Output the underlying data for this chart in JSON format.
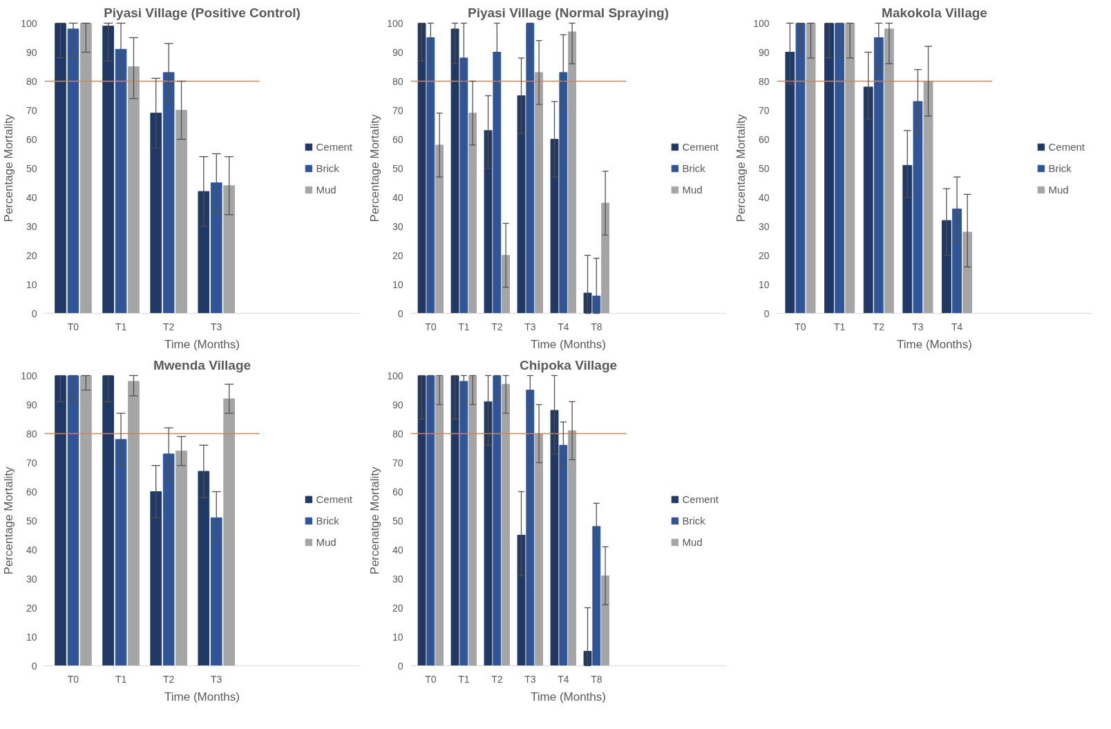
{
  "chart_data": [
    {
      "type": "bar",
      "title": "Piyasi Village (Positive Control)",
      "xlabel": "Time (Months)",
      "ylabel": "Percentage Mortality",
      "categories": [
        "T0",
        "T1",
        "T2",
        "T3"
      ],
      "ylim": [
        0,
        100
      ],
      "yticks": [
        0,
        10,
        20,
        30,
        40,
        50,
        60,
        70,
        80,
        90,
        100
      ],
      "legend": "right",
      "grid": false,
      "ref_lines": [
        {
          "axis": "y",
          "value": 80,
          "color": "#ed7d31"
        }
      ],
      "series": [
        {
          "name": "Cement",
          "color": "#203864",
          "values": [
            100,
            99,
            69,
            42
          ],
          "errors": [
            [
              88,
              100
            ],
            [
              87,
              100
            ],
            [
              57,
              81
            ],
            [
              30,
              54
            ]
          ]
        },
        {
          "name": "Brick",
          "color": "#2f5597",
          "values": [
            98,
            91,
            83,
            45
          ],
          "errors": [
            [
              88,
              100
            ],
            [
              81,
              100
            ],
            [
              73,
              93
            ],
            [
              35,
              55
            ]
          ]
        },
        {
          "name": "Mud",
          "color": "#a5a5a5",
          "values": [
            100,
            85,
            70,
            44
          ],
          "errors": [
            [
              90,
              100
            ],
            [
              74,
              95
            ],
            [
              60,
              80
            ],
            [
              34,
              54
            ]
          ]
        }
      ]
    },
    {
      "type": "bar",
      "title": "Piyasi Village (Normal Spraying)",
      "xlabel": "Time (Months)",
      "ylabel": "Percentage Mortality",
      "categories": [
        "T0",
        "T1",
        "T2",
        "T3",
        "T4",
        "T8"
      ],
      "ylim": [
        0,
        100
      ],
      "yticks": [
        0,
        10,
        20,
        30,
        40,
        50,
        60,
        70,
        80,
        90,
        100
      ],
      "legend": "right",
      "grid": false,
      "ref_lines": [
        {
          "axis": "y",
          "value": 80,
          "color": "#ed7d31"
        }
      ],
      "series": [
        {
          "name": "Cement",
          "color": "#203864",
          "values": [
            100,
            98,
            63,
            75,
            60,
            7
          ],
          "errors": [
            [
              87,
              100
            ],
            [
              86,
              100
            ],
            [
              50,
              75
            ],
            [
              62,
              88
            ],
            [
              47,
              73
            ],
            [
              0,
              20
            ]
          ]
        },
        {
          "name": "Brick",
          "color": "#2f5597",
          "values": [
            95,
            88,
            90,
            100,
            83,
            6
          ],
          "errors": [
            [
              82,
              100
            ],
            [
              75,
              100
            ],
            [
              77,
              100
            ],
            [
              87,
              100
            ],
            [
              70,
              96
            ],
            [
              0,
              19
            ]
          ]
        },
        {
          "name": "Mud",
          "color": "#a5a5a5",
          "values": [
            58,
            69,
            20,
            83,
            97,
            38
          ],
          "errors": [
            [
              47,
              69
            ],
            [
              58,
              80
            ],
            [
              9,
              31
            ],
            [
              72,
              94
            ],
            [
              86,
              100
            ],
            [
              27,
              49
            ]
          ]
        }
      ]
    },
    {
      "type": "bar",
      "title": "Makokola Village",
      "xlabel": "Time (Months)",
      "ylabel": "Percentage Mortality",
      "categories": [
        "T0",
        "T1",
        "T2",
        "T3",
        "T4"
      ],
      "ylim": [
        0,
        100
      ],
      "yticks": [
        0,
        10,
        20,
        30,
        40,
        50,
        60,
        70,
        80,
        90,
        100
      ],
      "legend": "right",
      "grid": false,
      "ref_lines": [
        {
          "axis": "y",
          "value": 80,
          "color": "#ed7d31"
        }
      ],
      "series": [
        {
          "name": "Cement",
          "color": "#203864",
          "values": [
            90,
            100,
            78,
            51,
            32
          ],
          "errors": [
            [
              79,
              100
            ],
            [
              88,
              100
            ],
            [
              67,
              90
            ],
            [
              40,
              63
            ],
            [
              20,
              43
            ]
          ]
        },
        {
          "name": "Brick",
          "color": "#2f5597",
          "values": [
            100,
            100,
            95,
            73,
            36
          ],
          "errors": [
            [
              89,
              100
            ],
            [
              89,
              100
            ],
            [
              84,
              100
            ],
            [
              62,
              84
            ],
            [
              25,
              47
            ]
          ]
        },
        {
          "name": "Mud",
          "color": "#a5a5a5",
          "values": [
            100,
            100,
            98,
            80,
            28
          ],
          "errors": [
            [
              88,
              100
            ],
            [
              88,
              100
            ],
            [
              86,
              100
            ],
            [
              68,
              92
            ],
            [
              16,
              41
            ]
          ]
        }
      ]
    },
    {
      "type": "bar",
      "title": "Mwenda Village",
      "xlabel": "Time (Months)",
      "ylabel": "Percentage Mortality",
      "categories": [
        "T0",
        "T1",
        "T2",
        "T3"
      ],
      "ylim": [
        0,
        100
      ],
      "yticks": [
        0,
        10,
        20,
        30,
        40,
        50,
        60,
        70,
        80,
        90,
        100
      ],
      "legend": "right",
      "grid": false,
      "ref_lines": [
        {
          "axis": "y",
          "value": 80,
          "color": "#ed7d31"
        }
      ],
      "series": [
        {
          "name": "Cement",
          "color": "#203864",
          "values": [
            100,
            100,
            60,
            67
          ],
          "errors": [
            [
              91,
              100
            ],
            [
              91,
              100
            ],
            [
              51,
              69
            ],
            [
              58,
              76
            ]
          ]
        },
        {
          "name": "Brick",
          "color": "#2f5597",
          "values": [
            100,
            78,
            73,
            51
          ],
          "errors": [
            [
              91,
              100
            ],
            [
              69,
              87
            ],
            [
              64,
              82
            ],
            [
              43,
              60
            ]
          ]
        },
        {
          "name": "Mud",
          "color": "#a5a5a5",
          "values": [
            100,
            98,
            74,
            92
          ],
          "errors": [
            [
              95,
              100
            ],
            [
              93,
              100
            ],
            [
              69,
              79
            ],
            [
              87,
              97
            ]
          ]
        }
      ]
    },
    {
      "type": "bar",
      "title": "Chipoka Village",
      "xlabel": "Time (Months)",
      "ylabel": "Percenatge Mortality",
      "categories": [
        "T0",
        "T1",
        "T2",
        "T3",
        "T4",
        "T8"
      ],
      "ylim": [
        0,
        100
      ],
      "yticks": [
        0,
        10,
        20,
        30,
        40,
        50,
        60,
        70,
        80,
        90,
        100
      ],
      "legend": "right",
      "grid": false,
      "ref_lines": [
        {
          "axis": "y",
          "value": 80,
          "color": "#ed7d31"
        }
      ],
      "series": [
        {
          "name": "Cement",
          "color": "#203864",
          "values": [
            100,
            100,
            91,
            45,
            88,
            5
          ],
          "errors": [
            [
              85,
              100
            ],
            [
              85,
              100
            ],
            [
              76,
              100
            ],
            [
              31,
              60
            ],
            [
              73,
              100
            ],
            [
              0,
              20
            ]
          ]
        },
        {
          "name": "Brick",
          "color": "#2f5597",
          "values": [
            100,
            98,
            100,
            95,
            76,
            48
          ],
          "errors": [
            [
              92,
              100
            ],
            [
              91,
              100
            ],
            [
              92,
              100
            ],
            [
              88,
              100
            ],
            [
              69,
              84
            ],
            [
              41,
              56
            ]
          ]
        },
        {
          "name": "Mud",
          "color": "#a5a5a5",
          "values": [
            100,
            100,
            97,
            80,
            81,
            31
          ],
          "errors": [
            [
              90,
              100
            ],
            [
              90,
              100
            ],
            [
              87,
              100
            ],
            [
              70,
              90
            ],
            [
              71,
              91
            ],
            [
              21,
              41
            ]
          ]
        }
      ]
    }
  ]
}
